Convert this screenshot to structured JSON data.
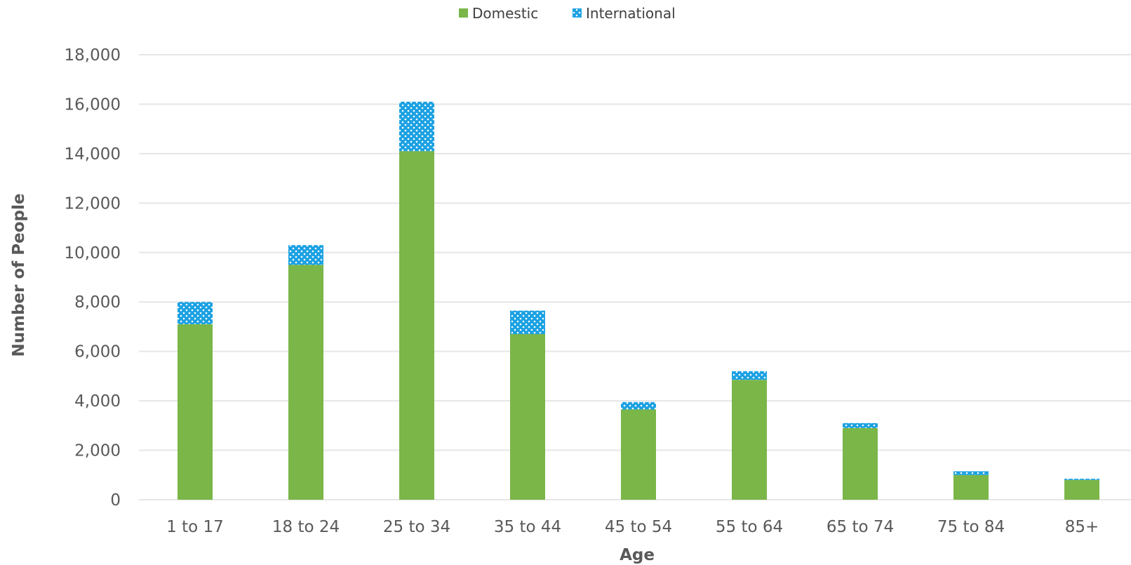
{
  "chart_data": {
    "type": "bar",
    "stacked": true,
    "categories": [
      "1 to 17",
      "18 to 24",
      "25 to 34",
      "35 to 44",
      "45 to 54",
      "55 to 64",
      "65 to 74",
      "75 to 84",
      "85+"
    ],
    "series": [
      {
        "name": "Domestic",
        "values": [
          7100,
          9500,
          14100,
          6700,
          3650,
          4850,
          2900,
          1000,
          800
        ],
        "color": "#7ab648",
        "pattern": "solid"
      },
      {
        "name": "International",
        "values": [
          900,
          800,
          2000,
          950,
          300,
          350,
          200,
          150,
          50
        ],
        "color": "#1ba1e2",
        "pattern": "dots"
      }
    ],
    "title": "",
    "xlabel": "Age",
    "ylabel": "Number of People",
    "ylim": [
      0,
      18000
    ],
    "yticks": [
      0,
      2000,
      4000,
      6000,
      8000,
      10000,
      12000,
      14000,
      16000,
      18000
    ],
    "ytick_labels": [
      "0",
      "2,000",
      "4,000",
      "6,000",
      "8,000",
      "10,000",
      "12,000",
      "14,000",
      "16,000",
      "18,000"
    ],
    "grid": true,
    "legend_position": "top-center",
    "gridline_color": "#e6e6e6"
  }
}
